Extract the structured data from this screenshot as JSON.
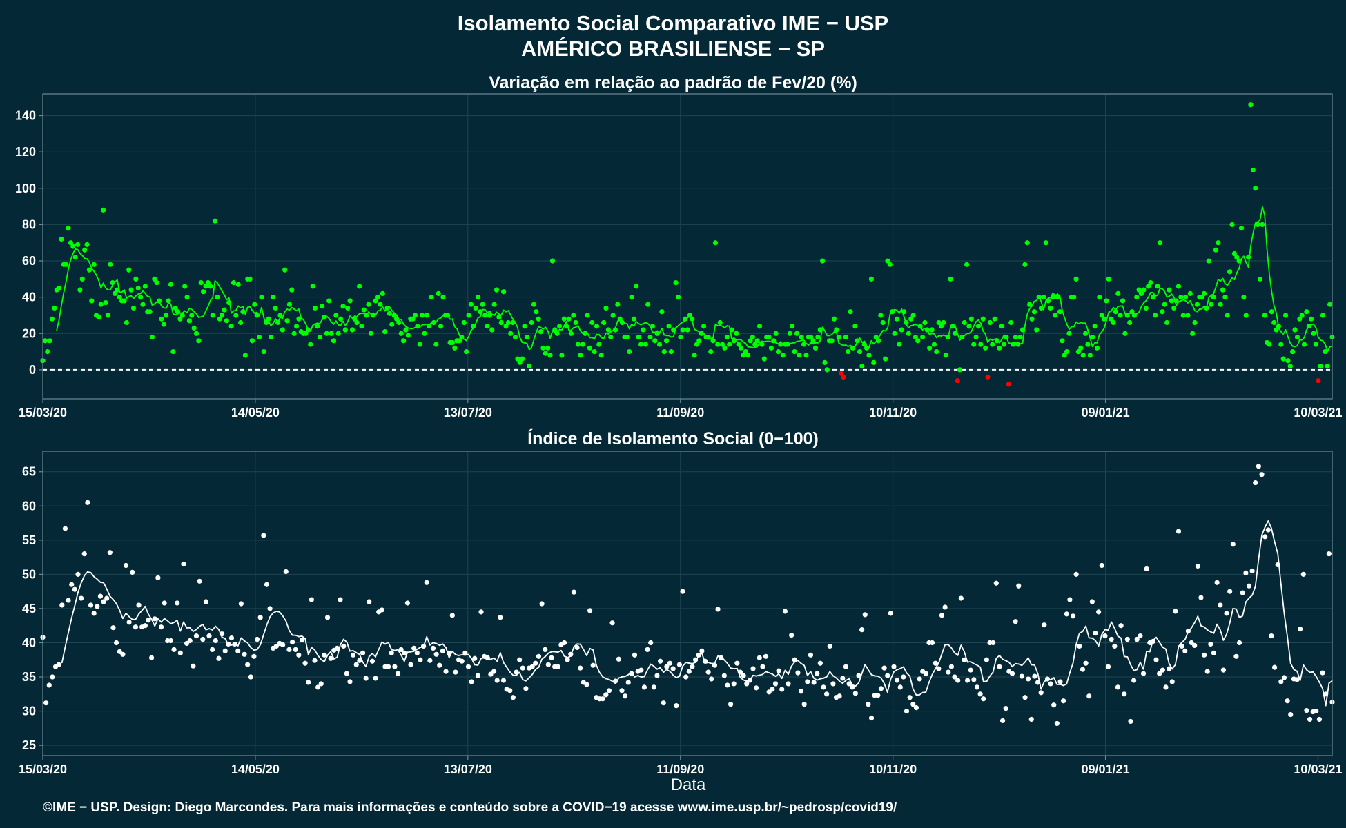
{
  "page": {
    "title_line1": "Isolamento Social Comparativo IME − USP",
    "title_line2": "AMÉRICO BRASILIENSE − SP",
    "xlabel": "Data",
    "footer": "©IME − USP. Design: Diego Marcondes. Para mais informações e conteúdo sobre a COVID−19 acesse www.ime.usp.br/~pedrosp/covid19/"
  },
  "colors": {
    "background": "#042835",
    "positive": "#00ff00",
    "negative": "#ff0000",
    "index": "#ffffff",
    "frame": "#6e8a94",
    "grid": "#1f4452"
  },
  "chart_data": [
    {
      "type": "scatter",
      "title": "Variação em relação ao padrão de Fev/20 (%)",
      "x_start": "2020-03-15",
      "x_end": "2021-03-14",
      "xticks": [
        "15/03/20",
        "14/05/20",
        "13/07/20",
        "11/09/20",
        "10/11/20",
        "09/01/21",
        "10/03/21"
      ],
      "yticks": [
        0,
        20,
        40,
        60,
        80,
        100,
        120,
        140
      ],
      "ylim": [
        -16,
        152
      ],
      "reference_line": 0,
      "smooth_window_days": 7,
      "series": [
        {
          "values": [
            5,
            16,
            10,
            16,
            28,
            34,
            44,
            45,
            72,
            58,
            58,
            78,
            70,
            68,
            62,
            69,
            44,
            50,
            66,
            69,
            55,
            38,
            58,
            30,
            29,
            36,
            88,
            37,
            30,
            58,
            48,
            42,
            44,
            40,
            38,
            38,
            26,
            55,
            44,
            34,
            50,
            45,
            40,
            36,
            46,
            32,
            32,
            18,
            50,
            48,
            38,
            28,
            25,
            30,
            38,
            47,
            10,
            34,
            32,
            28,
            30,
            46,
            40,
            27,
            30,
            23,
            20,
            16,
            48,
            43,
            46,
            48,
            46,
            30,
            82,
            40,
            28,
            30,
            33,
            27,
            37,
            24,
            48,
            30,
            47,
            26,
            32,
            8,
            50,
            50,
            16,
            36,
            30,
            18,
            40,
            10,
            26,
            28,
            18,
            40,
            34,
            26,
            30,
            22,
            55,
            27,
            36,
            44,
            20,
            24,
            28,
            21,
            20,
            20,
            22,
            14,
            46,
            34,
            24,
            18,
            35,
            29,
            20,
            38,
            20,
            16,
            30,
            20,
            28,
            35,
            22,
            34,
            38,
            22,
            28,
            26,
            46,
            24,
            33,
            30,
            36,
            20,
            30,
            38,
            40,
            36,
            42,
            21,
            34,
            31,
            25,
            30,
            28,
            26,
            20,
            16,
            22,
            19,
            28,
            28,
            30,
            24,
            14,
            30,
            20,
            30,
            24,
            40,
            26,
            14,
            42,
            24,
            40,
            30,
            30,
            15,
            15,
            12,
            16,
            16,
            18,
            26,
            10,
            30,
            36,
            24,
            34,
            40,
            32,
            36,
            30,
            24,
            30,
            22,
            36,
            44,
            29,
            26,
            43,
            24,
            26,
            20,
            26,
            18,
            6,
            4,
            6,
            24,
            18,
            2,
            26,
            36,
            32,
            28,
            21,
            12,
            9,
            12,
            8,
            60,
            22,
            20,
            24,
            8,
            28,
            24,
            28,
            20,
            30,
            26,
            14,
            8,
            14,
            20,
            30,
            12,
            26,
            10,
            24,
            14,
            8,
            26,
            34,
            22,
            18,
            30,
            22,
            36,
            28,
            26,
            18,
            18,
            10,
            40,
            28,
            46,
            18,
            14,
            22,
            14,
            36,
            18,
            24,
            16,
            20,
            14,
            32,
            10,
            16,
            24,
            10,
            22,
            48,
            40,
            18,
            22,
            28,
            22,
            30,
            28,
            8,
            14,
            16,
            20,
            24,
            18,
            18,
            10,
            16,
            70,
            14,
            26,
            14,
            12,
            18,
            14,
            22,
            16,
            20,
            14,
            12,
            8,
            10,
            8,
            16,
            18,
            14,
            16,
            24,
            14,
            6,
            18,
            18,
            12,
            16,
            20,
            10,
            14,
            8,
            14,
            14,
            20,
            24,
            10,
            20,
            8,
            18,
            14,
            8,
            18,
            18,
            16,
            12,
            18,
            22,
            60,
            4,
            0,
            16,
            16,
            28,
            22,
            18,
            -2,
            -4,
            18,
            10,
            32,
            12,
            24,
            16,
            10,
            2,
            14,
            12,
            8,
            50,
            4,
            18,
            16,
            30,
            26,
            6,
            60,
            58,
            32,
            20,
            28,
            14,
            22,
            32,
            26,
            20,
            28,
            30,
            18,
            16,
            24,
            18,
            26,
            22,
            12,
            22,
            14,
            10,
            26,
            24,
            26,
            8,
            18,
            50,
            24,
            20,
            -6,
            0,
            18,
            26,
            58,
            24,
            28,
            14,
            18,
            24,
            14,
            28,
            12,
            -4,
            26,
            14,
            28,
            16,
            12,
            24,
            14,
            18,
            -8,
            26,
            14,
            18,
            14,
            18,
            22,
            58,
            70,
            36,
            28,
            32,
            22,
            40,
            34,
            40,
            70,
            38,
            34,
            40,
            30,
            40,
            32,
            16,
            8,
            10,
            20,
            40,
            40,
            50,
            10,
            12,
            8,
            20,
            14,
            8,
            18,
            24,
            12,
            40,
            30,
            28,
            38,
            50,
            28,
            26,
            32,
            42,
            30,
            38,
            20,
            30,
            26,
            32,
            30,
            40,
            44,
            42,
            44,
            34,
            46,
            48,
            40,
            30,
            46,
            70,
            32,
            36,
            26,
            44,
            38,
            34,
            38,
            46,
            40,
            30,
            40,
            30,
            42,
            20,
            26,
            36,
            40,
            40,
            42,
            34,
            60,
            36,
            40,
            66,
            70,
            36,
            44,
            40,
            30,
            54,
            80,
            64,
            62,
            60,
            78,
            40,
            30,
            62,
            146,
            110,
            100,
            80,
            50,
            80,
            30,
            15,
            14,
            32,
            26,
            22,
            24,
            14,
            6,
            30,
            5,
            2,
            10,
            22,
            18,
            28,
            30,
            14,
            32,
            24,
            28,
            20,
            14,
            -6,
            2,
            30,
            10,
            2,
            36,
            18
          ]
        }
      ]
    },
    {
      "type": "scatter",
      "title": "Índice de Isolamento Social (0−100)",
      "x_start": "2020-03-15",
      "x_end": "2021-03-14",
      "xticks": [
        "15/03/20",
        "14/05/20",
        "13/07/20",
        "11/09/20",
        "10/11/20",
        "09/01/21",
        "10/03/21"
      ],
      "yticks": [
        25,
        30,
        35,
        40,
        45,
        50,
        55,
        60,
        65
      ],
      "ylim": [
        23.5,
        68
      ],
      "smooth_window_days": 7,
      "series": [
        {
          "values": [
            40.8,
            31.2,
            33.8,
            35,
            36.5,
            36.8,
            45.5,
            56.7,
            46.2,
            48.5,
            47.8,
            50,
            46.5,
            53,
            60.5,
            45.5,
            44.3,
            45.3,
            46.8,
            46,
            46.5,
            53.2,
            42.2,
            40,
            38.7,
            38.3,
            51.3,
            43,
            50.3,
            42.3,
            45.5,
            42.3,
            42.5,
            43.3,
            37.8,
            43.5,
            49.5,
            42.3,
            45.8,
            40.3,
            40.3,
            39,
            45.8,
            38.5,
            51.5,
            39.9,
            40.3,
            36.6,
            41,
            49,
            40.5,
            46,
            41,
            39,
            40.3,
            37.7,
            41.3,
            38.8,
            39.8,
            40.7,
            39.8,
            38.8,
            45.7,
            38.3,
            36.8,
            35,
            38,
            40.5,
            43.7,
            55.7,
            48.5,
            45,
            39.2,
            39.5,
            39.9,
            39.7,
            50.4,
            39,
            40.1,
            39,
            38.2,
            40.4,
            37,
            34.2,
            46.3,
            37.4,
            33.5,
            34,
            38.2,
            43.7,
            37.7,
            38.9,
            39.2,
            46.3,
            39.5,
            35.5,
            34.3,
            38.2,
            36.8,
            37.4,
            38.5,
            34.8,
            46,
            37.3,
            34.8,
            44.5,
            44.8,
            36.5,
            36.5,
            38.5,
            36.5,
            35.5,
            39,
            38.5,
            45.8,
            36.8,
            39.2,
            38.5,
            37.5,
            39.5,
            48.8,
            37.4,
            39.2,
            38.3,
            36.7,
            38.8,
            35.8,
            38.5,
            44,
            35.7,
            37.5,
            37.3,
            38.5,
            36.5,
            34.3,
            37.7,
            35.2,
            44.5,
            38,
            37.8,
            35.4,
            35.8,
            34.5,
            43.7,
            34.5,
            33.2,
            33,
            32,
            35.7,
            37.5,
            36.3,
            33.3,
            36.3,
            36.5,
            37,
            38,
            45.7,
            39,
            36.8,
            37.8,
            36.5,
            36.5,
            39.7,
            40,
            37.5,
            38.3,
            47.4,
            39.3,
            36.3,
            34.2,
            33.9,
            44.7,
            36.7,
            32,
            31.8,
            31.8,
            32.4,
            33,
            42.9,
            34.4,
            37.6,
            33,
            32.2,
            34.2,
            35.5,
            38.2,
            35.8,
            36,
            33.5,
            39,
            40,
            33.5,
            35.2,
            37.3,
            31.2,
            36.5,
            37,
            36.2,
            30.8,
            36.8,
            47.5,
            35,
            35.8,
            36.5,
            37.5,
            38.2,
            38.8,
            37.3,
            35.7,
            34.7,
            36.7,
            44.9,
            37.8,
            35.2,
            33.8,
            31,
            34,
            37,
            35.7,
            35.2,
            34,
            34.5,
            36.2,
            33.4,
            37.8,
            36.5,
            38,
            32.8,
            33.2,
            34,
            35.9,
            33.2,
            44.6,
            34,
            41.1,
            37.5,
            35.6,
            32.9,
            31,
            34.3,
            38.2,
            34.2,
            35.5,
            37,
            33.5,
            32.5,
            39.5,
            34,
            32,
            32.2,
            34.8,
            36.5,
            34,
            33.5,
            32.6,
            35.2,
            41.9,
            44.1,
            31,
            29,
            32.3,
            32.3,
            33.3,
            36.3,
            35.2,
            44.3,
            36.5,
            34.5,
            33.5,
            35,
            30,
            32,
            31,
            30.5,
            34.7,
            35.8,
            35.5,
            40,
            40,
            37,
            36.2,
            44,
            45.2,
            35.7,
            36.5,
            35,
            34.5,
            46.5,
            37.5,
            34.5,
            36,
            34.6,
            33.5,
            32.5,
            31.8,
            37.5,
            40,
            40,
            48.7,
            36.5,
            28.6,
            30.4,
            35.8,
            35.5,
            43.1,
            48.3,
            35.1,
            32,
            34.7,
            28.8,
            35.1,
            34.2,
            32.7,
            42.6,
            34.7,
            34,
            30.9,
            28.2,
            34.3,
            31.5,
            44.2,
            46.3,
            43.9,
            50,
            39.5,
            36.1,
            37,
            32.2,
            46,
            41.4,
            44.5,
            51.3,
            41,
            36.5,
            40.5,
            39.5,
            33.5,
            42.5,
            32.5,
            40.5,
            28.5,
            34.5,
            40.5,
            41,
            35.5,
            50.8,
            40,
            40.2,
            37.5,
            35.5,
            36,
            33.5,
            36.2,
            34.3,
            44.6,
            56.3,
            39.5,
            38.8,
            41.7,
            40,
            39.6,
            51.2,
            46.6,
            38.2,
            35.8,
            39.8,
            38.5,
            48.8,
            45.5,
            36,
            44.3,
            47.5,
            54.4,
            38,
            40,
            47.3,
            50.2,
            48.3,
            50.5,
            63.4,
            65.8,
            64.6,
            55.5,
            56.5,
            41,
            36.4,
            51.4,
            34.3,
            34.9,
            31.5,
            29.5,
            34.7,
            34.6,
            42,
            50,
            30.1,
            28.8,
            29.9,
            30,
            28.8,
            35.6,
            32.5,
            53,
            31.3
          ]
        }
      ]
    }
  ]
}
